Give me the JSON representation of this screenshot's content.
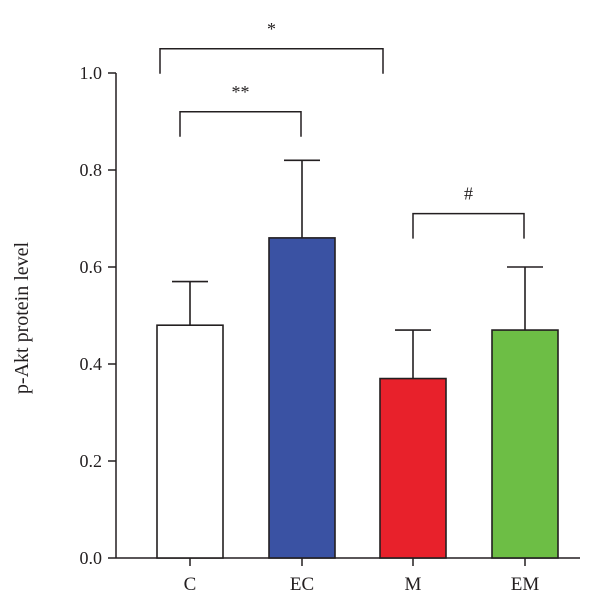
{
  "chart_data": {
    "type": "bar",
    "title": "",
    "ylabel": "p-Akt protein level",
    "xlabel": "",
    "ylim": [
      0,
      1.0
    ],
    "yticks": [
      "0.0",
      "0.2",
      "0.4",
      "0.6",
      "0.8",
      "1.0"
    ],
    "categories": [
      "C",
      "EC",
      "M",
      "EM"
    ],
    "values": [
      0.48,
      0.66,
      0.37,
      0.47
    ],
    "errors": [
      0.09,
      0.16,
      0.1,
      0.13
    ],
    "colors": [
      "#ffffff",
      "#3a52a3",
      "#e8212b",
      "#6dbe45"
    ],
    "significance": [
      {
        "from": 0,
        "to": 2,
        "label": "*",
        "level": 1.05
      },
      {
        "from": 0,
        "to": 1,
        "label": "**",
        "level": 0.92
      },
      {
        "from": 2,
        "to": 3,
        "label": "#",
        "level": 0.71
      }
    ]
  }
}
